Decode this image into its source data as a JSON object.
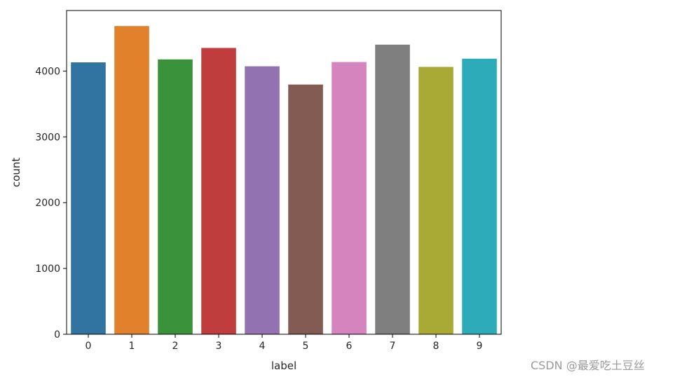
{
  "chart_data": {
    "type": "bar",
    "xlabel": "label",
    "ylabel": "count",
    "categories": [
      "0",
      "1",
      "2",
      "3",
      "4",
      "5",
      "6",
      "7",
      "8",
      "9"
    ],
    "values": [
      4132,
      4684,
      4177,
      4351,
      4072,
      3795,
      4137,
      4401,
      4063,
      4188
    ],
    "colors": [
      "#3274a1",
      "#e1812c",
      "#3a923a",
      "#c03d3e",
      "#9372b2",
      "#845b53",
      "#d684bd",
      "#7f7f7f",
      "#a9aa35",
      "#2eabb8"
    ],
    "ylim": [
      0,
      4920
    ],
    "yticks": [
      0,
      1000,
      2000,
      3000,
      4000
    ],
    "grid": false,
    "legend": "none"
  },
  "watermark": "CSDN @最爱吃土豆丝"
}
